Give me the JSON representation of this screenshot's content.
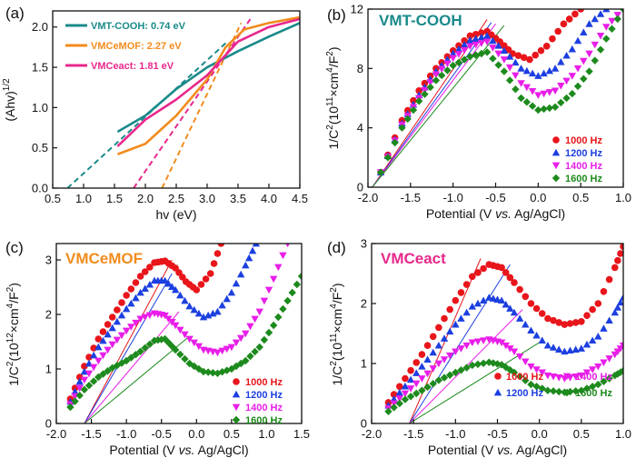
{
  "chart_data": [
    {
      "type": "line",
      "panel": "(a)",
      "xlabel": "hv (eV)",
      "ylabel": "(Ahv)^1/2",
      "xlim": [
        0.5,
        4.5
      ],
      "ylim": [
        0.0,
        2.2
      ],
      "xticks": [
        "0.5",
        "1.0",
        "1.5",
        "2.0",
        "2.5",
        "3.0",
        "3.5",
        "4.0",
        "4.5"
      ],
      "yticks": [
        "0.0",
        "0.5",
        "1.0",
        "1.5",
        "2.0"
      ],
      "legend": [
        {
          "label": "VMT-COOH: 0.74 eV",
          "color": "#1a8a8a"
        },
        {
          "label": "VMCeMOF: 2.27 eV",
          "color": "#f28c1e"
        },
        {
          "label": "VMCeact: 1.81 eV",
          "color": "#e8288c"
        }
      ],
      "series": [
        {
          "name": "VMT-COOH: 0.74 eV",
          "color": "#1a8a8a",
          "x": [
            1.55,
            2.0,
            2.5,
            3.0,
            3.5,
            4.0,
            4.5
          ],
          "y": [
            0.7,
            0.9,
            1.23,
            1.5,
            1.7,
            1.88,
            2.05
          ],
          "fit": {
            "x": [
              0.74,
              3.3
            ],
            "y": [
              0.0,
              1.8
            ]
          }
        },
        {
          "name": "VMCeMOF: 2.27 eV",
          "color": "#f28c1e",
          "x": [
            1.55,
            2.0,
            2.5,
            3.0,
            3.3,
            3.6,
            4.0,
            4.5
          ],
          "y": [
            0.42,
            0.55,
            0.9,
            1.35,
            1.75,
            1.97,
            2.05,
            2.12
          ],
          "fit": {
            "x": [
              2.27,
              3.55
            ],
            "y": [
              0.0,
              2.05
            ]
          }
        },
        {
          "name": "VMCeact: 1.81 eV",
          "color": "#e8288c",
          "x": [
            1.55,
            2.0,
            2.5,
            3.0,
            3.5,
            4.0,
            4.5
          ],
          "y": [
            0.52,
            0.85,
            1.1,
            1.4,
            1.82,
            2.0,
            2.1
          ],
          "fit": {
            "x": [
              1.81,
              3.7
            ],
            "y": [
              0.0,
              2.1
            ]
          }
        }
      ]
    },
    {
      "type": "scatter",
      "panel": "(b)",
      "title": "VMT-COOH",
      "title_color": "#1a8a8a",
      "xlabel": "Potential (V vs. Ag/AgCl)",
      "ylabel": "1/C2(10^11×cm^4/F^2)",
      "xlim": [
        -2.0,
        1.0
      ],
      "ylim": [
        0,
        12
      ],
      "xticks": [
        "-2.0",
        "-1.5",
        "-1.0",
        "-0.5",
        "0.0",
        "0.5",
        "1.0"
      ],
      "yticks": [
        "0",
        "4",
        "8",
        "12"
      ],
      "legend": [
        "1000 Hz",
        "1200 Hz",
        "1400 Hz",
        "1600 Hz"
      ],
      "series": [
        {
          "name": "1000 Hz",
          "x": [
            -1.85,
            -1.6,
            -1.4,
            -1.2,
            -1.0,
            -0.8,
            -0.6,
            -0.45,
            -0.3,
            -0.1,
            0.1,
            0.3,
            0.5
          ],
          "y": [
            1.0,
            4.5,
            6.5,
            8.0,
            9.2,
            10.2,
            10.5,
            9.8,
            9.0,
            8.6,
            9.5,
            11.0,
            12.0
          ]
        },
        {
          "name": "1200 Hz",
          "x": [
            -1.85,
            -1.6,
            -1.4,
            -1.2,
            -1.0,
            -0.8,
            -0.6,
            -0.4,
            -0.2,
            0.0,
            0.2,
            0.4,
            0.6,
            0.8
          ],
          "y": [
            1.0,
            4.3,
            6.2,
            7.8,
            9.0,
            9.9,
            10.2,
            9.2,
            8.0,
            7.5,
            8.0,
            9.3,
            11.0,
            12.0
          ]
        },
        {
          "name": "1400 Hz",
          "x": [
            -1.85,
            -1.6,
            -1.4,
            -1.2,
            -1.0,
            -0.8,
            -0.6,
            -0.4,
            -0.2,
            0.0,
            0.2,
            0.4,
            0.6,
            0.8,
            1.0
          ],
          "y": [
            1.0,
            4.2,
            6.0,
            7.6,
            8.7,
            9.5,
            9.8,
            8.6,
            7.0,
            6.2,
            6.5,
            7.5,
            9.0,
            10.8,
            12.0
          ]
        },
        {
          "name": "1600 Hz",
          "x": [
            -1.85,
            -1.6,
            -1.4,
            -1.2,
            -1.0,
            -0.8,
            -0.6,
            -0.4,
            -0.2,
            0.0,
            0.2,
            0.4,
            0.6,
            0.8,
            1.0
          ],
          "y": [
            1.0,
            4.0,
            5.8,
            7.2,
            8.2,
            8.8,
            9.1,
            7.8,
            6.0,
            5.2,
            5.4,
            6.3,
            7.8,
            10.0,
            12.0
          ]
        }
      ],
      "fits": [
        {
          "x": [
            -1.95,
            -0.6
          ],
          "y": [
            0.0,
            11.3
          ]
        },
        {
          "x": [
            -1.95,
            -0.55
          ],
          "y": [
            0.0,
            11.1
          ]
        },
        {
          "x": [
            -1.95,
            -0.5
          ],
          "y": [
            0.0,
            11.0
          ]
        },
        {
          "x": [
            -1.95,
            -0.4
          ],
          "y": [
            0.0,
            10.9
          ]
        }
      ]
    },
    {
      "type": "scatter",
      "panel": "(c)",
      "title": "VMCeMOF",
      "title_color": "#f28c1e",
      "xlabel": "Potential (V vs. Ag/AgCl)",
      "ylabel": "1/C2(10^12×cm^4/F^2)",
      "xlim": [
        -2.0,
        1.5
      ],
      "ylim": [
        0,
        3.3
      ],
      "xticks": [
        "-2.0",
        "-1.5",
        "-1.0",
        "-0.5",
        "0.0",
        "0.5",
        "1.0",
        "1.5"
      ],
      "yticks": [
        "0",
        "1",
        "2",
        "3"
      ],
      "legend": [
        "1000 Hz",
        "1200 Hz",
        "1400 Hz",
        "1600 Hz"
      ],
      "series": [
        {
          "name": "1000 Hz",
          "x": [
            -1.8,
            -1.6,
            -1.4,
            -1.2,
            -1.0,
            -0.8,
            -0.6,
            -0.45,
            -0.3,
            -0.15,
            0.0,
            0.2,
            0.35
          ],
          "y": [
            0.45,
            1.05,
            1.55,
            1.95,
            2.35,
            2.7,
            2.95,
            2.98,
            2.85,
            2.6,
            2.45,
            2.75,
            3.3
          ]
        },
        {
          "name": "1200 Hz",
          "x": [
            -1.8,
            -1.6,
            -1.4,
            -1.2,
            -1.0,
            -0.8,
            -0.6,
            -0.45,
            -0.3,
            -0.1,
            0.1,
            0.3,
            0.5,
            0.7,
            0.85
          ],
          "y": [
            0.4,
            0.95,
            1.4,
            1.75,
            2.1,
            2.4,
            2.62,
            2.62,
            2.45,
            2.15,
            1.95,
            2.05,
            2.4,
            2.9,
            3.3
          ]
        },
        {
          "name": "1400 Hz",
          "x": [
            -1.8,
            -1.6,
            -1.4,
            -1.2,
            -1.0,
            -0.8,
            -0.6,
            -0.45,
            -0.3,
            -0.1,
            0.1,
            0.3,
            0.5,
            0.7,
            0.9,
            1.1,
            1.3
          ],
          "y": [
            0.35,
            0.8,
            1.15,
            1.45,
            1.7,
            1.92,
            2.02,
            1.98,
            1.8,
            1.55,
            1.35,
            1.3,
            1.4,
            1.65,
            2.05,
            2.65,
            3.3
          ]
        },
        {
          "name": "1600 Hz",
          "x": [
            -1.8,
            -1.6,
            -1.4,
            -1.2,
            -1.0,
            -0.8,
            -0.6,
            -0.45,
            -0.3,
            -0.1,
            0.1,
            0.3,
            0.5,
            0.7,
            0.9,
            1.1,
            1.3,
            1.5
          ],
          "y": [
            0.3,
            0.62,
            0.85,
            1.02,
            1.15,
            1.32,
            1.52,
            1.55,
            1.35,
            1.1,
            0.95,
            0.92,
            1.0,
            1.15,
            1.4,
            1.8,
            2.25,
            2.7
          ]
        }
      ],
      "fits": [
        {
          "x": [
            -1.6,
            -0.35
          ],
          "y": [
            0.0,
            3.0
          ]
        },
        {
          "x": [
            -1.6,
            -0.35
          ],
          "y": [
            0.0,
            2.75
          ]
        },
        {
          "x": [
            -1.6,
            -0.25
          ],
          "y": [
            0.0,
            2.05
          ]
        },
        {
          "x": [
            -1.6,
            -0.1
          ],
          "y": [
            0.0,
            1.6
          ]
        }
      ]
    },
    {
      "type": "scatter",
      "panel": "(d)",
      "title": "VMCeact",
      "title_color": "#e8288c",
      "xlabel": "Potential (V vs. Ag/AgCl)",
      "ylabel": "1/C2(10^11×cm^4/F^2)",
      "xlim": [
        -2.0,
        1.0
      ],
      "ylim": [
        0,
        3.0
      ],
      "xticks": [
        "-2.0",
        "-1.5",
        "-1.0",
        "-0.5",
        "0.0",
        "0.5",
        "1.0"
      ],
      "yticks": [
        "0",
        "1",
        "2",
        "3"
      ],
      "legend": [
        "1000 Hz",
        "1200 Hz",
        "1400 Hz",
        "1600 Hz"
      ],
      "series": [
        {
          "name": "1000 Hz",
          "x": [
            -1.8,
            -1.6,
            -1.4,
            -1.2,
            -1.0,
            -0.8,
            -0.6,
            -0.45,
            -0.3,
            -0.1,
            0.1,
            0.3,
            0.5,
            0.7,
            0.9,
            1.0
          ],
          "y": [
            0.35,
            0.75,
            1.15,
            1.6,
            2.05,
            2.45,
            2.65,
            2.6,
            2.35,
            2.0,
            1.75,
            1.65,
            1.7,
            2.0,
            2.6,
            2.95
          ]
        },
        {
          "name": "1200 Hz",
          "x": [
            -1.8,
            -1.6,
            -1.4,
            -1.2,
            -1.0,
            -0.8,
            -0.6,
            -0.45,
            -0.3,
            -0.1,
            0.1,
            0.3,
            0.5,
            0.7,
            0.9,
            1.0
          ],
          "y": [
            0.3,
            0.62,
            0.95,
            1.3,
            1.65,
            1.95,
            2.1,
            2.05,
            1.85,
            1.55,
            1.3,
            1.2,
            1.25,
            1.45,
            1.85,
            2.1
          ]
        },
        {
          "name": "1400 Hz",
          "x": [
            -1.8,
            -1.6,
            -1.4,
            -1.2,
            -1.0,
            -0.8,
            -0.6,
            -0.45,
            -0.3,
            -0.1,
            0.1,
            0.3,
            0.5,
            0.7,
            0.9,
            1.0
          ],
          "y": [
            0.25,
            0.5,
            0.75,
            1.0,
            1.2,
            1.35,
            1.4,
            1.35,
            1.2,
            0.95,
            0.8,
            0.75,
            0.8,
            0.95,
            1.15,
            1.3
          ]
        },
        {
          "name": "1600 Hz",
          "x": [
            -1.8,
            -1.6,
            -1.4,
            -1.2,
            -1.0,
            -0.8,
            -0.6,
            -0.45,
            -0.3,
            -0.1,
            0.1,
            0.3,
            0.5,
            0.7,
            0.9,
            1.0
          ],
          "y": [
            0.2,
            0.4,
            0.55,
            0.72,
            0.85,
            0.97,
            1.02,
            0.98,
            0.85,
            0.65,
            0.55,
            0.52,
            0.55,
            0.65,
            0.8,
            0.88
          ]
        }
      ],
      "fits": [
        {
          "x": [
            -1.55,
            -0.7
          ],
          "y": [
            0.0,
            2.75
          ]
        },
        {
          "x": [
            -1.55,
            -0.35
          ],
          "y": [
            0.0,
            2.65
          ]
        },
        {
          "x": [
            -1.55,
            -0.2
          ],
          "y": [
            0.0,
            1.9
          ]
        },
        {
          "x": [
            -1.55,
            0.0
          ],
          "y": [
            0.0,
            1.35
          ]
        }
      ]
    }
  ],
  "freq_colors": [
    "#e8151b",
    "#1c3fe0",
    "#e81ee8",
    "#1d8a1d"
  ]
}
